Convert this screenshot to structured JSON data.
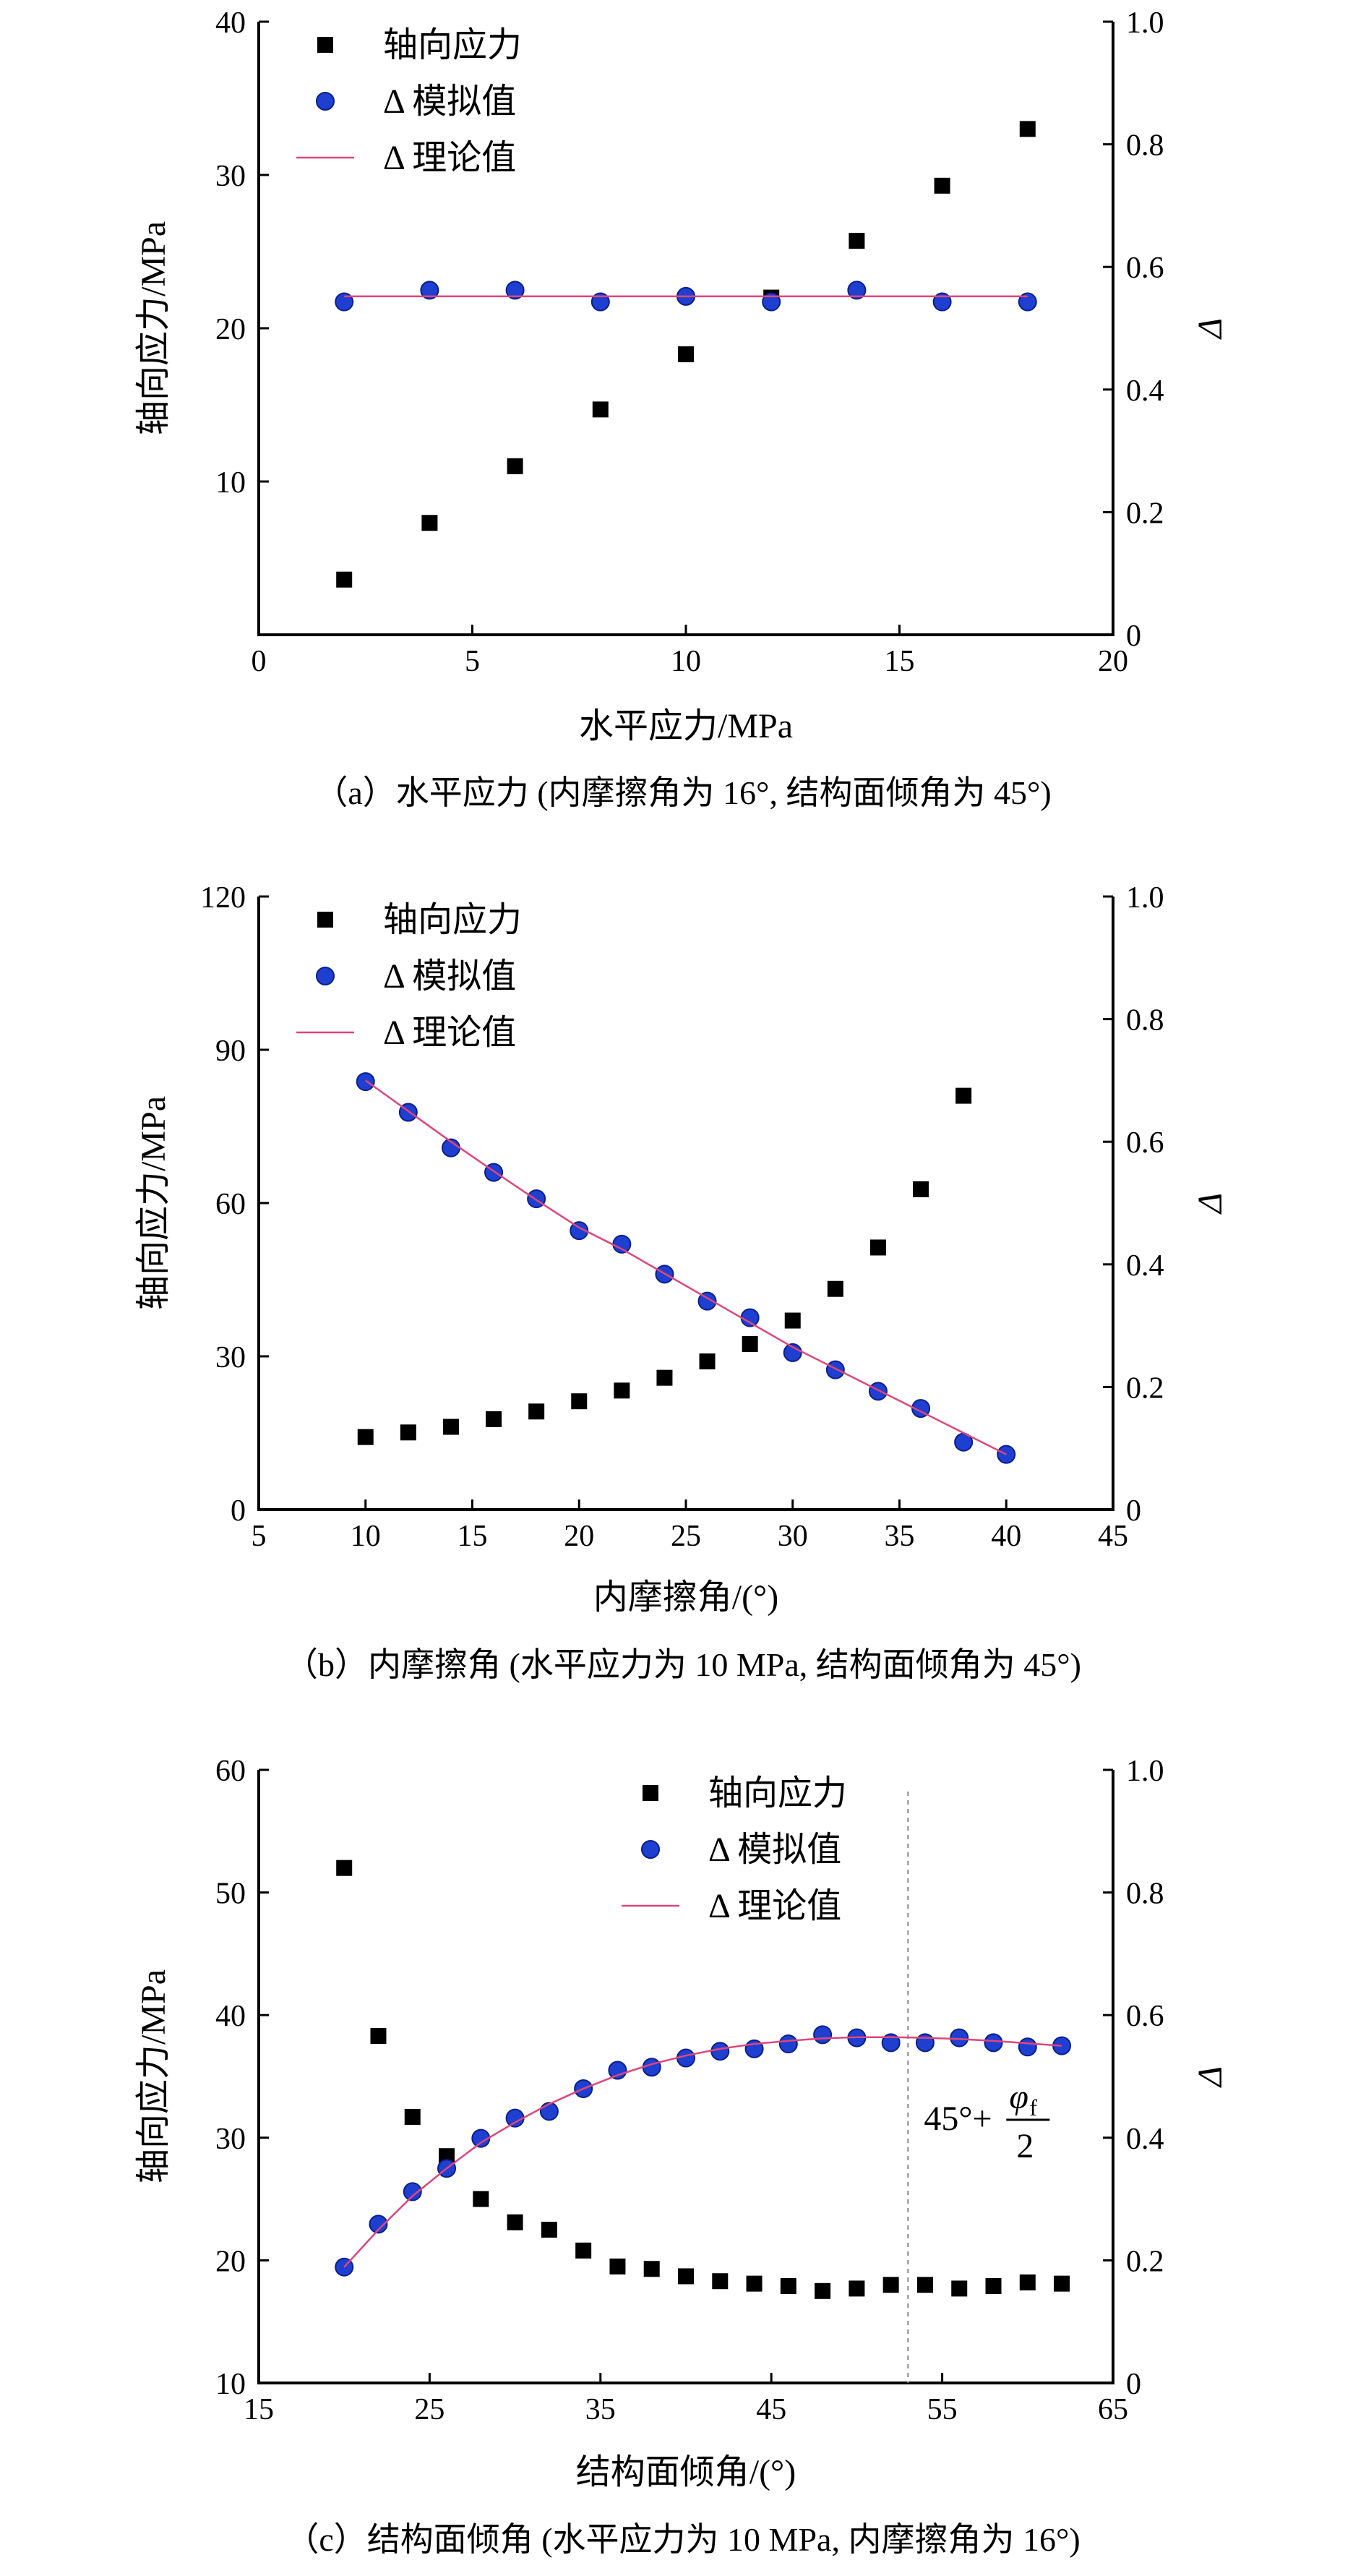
{
  "chart_data": [
    {
      "type": "scatter",
      "caption": "（a）水平应力 (内摩擦角为 16°, 结构面倾角为 45°)",
      "xlabel": "水平应力/MPa",
      "ylabel_left": "轴向应力/MPa",
      "ylabel_right": "Δ",
      "xlim": [
        0,
        20
      ],
      "ylim_left": [
        0,
        40
      ],
      "ylim_right": [
        0,
        1.0
      ],
      "xticks": [
        "0",
        "5",
        "10",
        "15",
        "20"
      ],
      "yticks_left": [
        "",
        "10",
        "20",
        "30",
        "40"
      ],
      "yticks_right": [
        "0",
        "0.2",
        "0.4",
        "0.6",
        "0.8",
        "1.0"
      ],
      "legend_position": "top-left",
      "legend": [
        "轴向应力",
        "Δ 模拟值",
        "Δ 理论值"
      ],
      "series": [
        {
          "marker": "square",
          "color": "#000000",
          "axis": "left",
          "x": [
            2,
            4,
            6,
            8,
            10,
            12,
            14,
            16,
            18
          ],
          "y": [
            3.6,
            7.3,
            11.0,
            14.7,
            18.3,
            22.0,
            25.7,
            29.3,
            33.0
          ]
        },
        {
          "marker": "circle",
          "color": "#1f3fd1",
          "axis": "right",
          "x": [
            2,
            4,
            6,
            8,
            10,
            12,
            14,
            16,
            18
          ],
          "y": [
            0.543,
            0.562,
            0.562,
            0.543,
            0.552,
            0.543,
            0.562,
            0.543,
            0.543
          ]
        },
        {
          "marker": "line",
          "color": "#e0457b",
          "axis": "right",
          "x": [
            2,
            18
          ],
          "y": [
            0.552,
            0.552
          ]
        }
      ]
    },
    {
      "type": "scatter",
      "caption": "（b）内摩擦角 (水平应力为 10 MPa, 结构面倾角为 45°)",
      "xlabel": "内摩擦角/(°)",
      "ylabel_left": "轴向应力/MPa",
      "ylabel_right": "Δ",
      "xlim": [
        5,
        45
      ],
      "ylim_left": [
        0,
        120
      ],
      "ylim_right": [
        0,
        1.0
      ],
      "xticks": [
        "5",
        "10",
        "15",
        "20",
        "25",
        "30",
        "35",
        "40",
        "45"
      ],
      "yticks_left": [
        "0",
        "30",
        "60",
        "90",
        "120"
      ],
      "yticks_right": [
        "0",
        "0.2",
        "0.4",
        "0.6",
        "0.8",
        "1.0"
      ],
      "legend_position": "top-left",
      "legend": [
        "轴向应力",
        "Δ 模拟值",
        "Δ 理论值"
      ],
      "series": [
        {
          "marker": "square",
          "color": "#000000",
          "axis": "left",
          "x": [
            10,
            12,
            14,
            16,
            18,
            20,
            22,
            24,
            26,
            28,
            30,
            32,
            34,
            36,
            38
          ],
          "y": [
            14.2,
            15.1,
            16.2,
            17.7,
            19.2,
            21.2,
            23.3,
            25.8,
            29.0,
            32.4,
            37.0,
            43.2,
            51.3,
            62.7,
            81.0
          ]
        },
        {
          "marker": "circle",
          "color": "#1f3fd1",
          "axis": "right",
          "x": [
            10,
            12,
            14,
            16,
            18,
            20,
            22,
            24,
            26,
            28,
            30,
            32,
            34,
            36,
            38,
            40
          ],
          "y": [
            0.698,
            0.648,
            0.59,
            0.55,
            0.507,
            0.455,
            0.433,
            0.384,
            0.34,
            0.313,
            0.256,
            0.228,
            0.193,
            0.165,
            0.11,
            0.09
          ]
        },
        {
          "marker": "line",
          "color": "#e0457b",
          "axis": "right",
          "x": [
            10,
            12,
            14,
            16,
            18,
            20,
            22,
            24,
            26,
            28,
            30,
            32,
            34,
            36,
            38,
            40
          ],
          "y": [
            0.7,
            0.65,
            0.6,
            0.552,
            0.505,
            0.46,
            0.425,
            0.385,
            0.345,
            0.305,
            0.265,
            0.23,
            0.195,
            0.16,
            0.125,
            0.09
          ]
        }
      ]
    },
    {
      "type": "scatter",
      "caption": "（c）结构面倾角 (水平应力为 10 MPa, 内摩擦角为 16°)",
      "xlabel": "结构面倾角/(°)",
      "ylabel_left": "轴向应力/MPa",
      "ylabel_right": "Δ",
      "xlim": [
        15,
        65
      ],
      "ylim_left": [
        10,
        60
      ],
      "ylim_right": [
        0,
        1.0
      ],
      "xticks": [
        "15",
        "25",
        "35",
        "45",
        "55",
        "65"
      ],
      "yticks_left": [
        "10",
        "20",
        "30",
        "40",
        "50",
        "60"
      ],
      "yticks_right": [
        "0",
        "0.2",
        "0.4",
        "0.6",
        "0.8",
        "1.0"
      ],
      "legend_position": "top-center",
      "legend": [
        "轴向应力",
        "Δ 模拟值",
        "Δ 理论值"
      ],
      "annotation": {
        "text": "45°+",
        "numerator": "φ",
        "numerator_sub": "f",
        "denominator": "2",
        "x": 53
      },
      "series": [
        {
          "marker": "square",
          "color": "#000000",
          "axis": "left",
          "x": [
            20,
            22,
            24,
            26,
            28,
            30,
            32,
            34,
            36,
            38,
            40,
            42,
            44,
            46,
            48,
            50,
            52,
            54,
            56,
            58,
            60,
            62
          ],
          "y": [
            52.0,
            38.3,
            31.7,
            28.5,
            25.0,
            23.1,
            22.5,
            20.8,
            19.5,
            19.3,
            18.7,
            18.3,
            18.1,
            17.9,
            17.5,
            17.7,
            18.0,
            18.0,
            17.7,
            17.9,
            18.2,
            18.1
          ]
        },
        {
          "marker": "circle",
          "color": "#1f3fd1",
          "axis": "right",
          "x": [
            20,
            22,
            24,
            26,
            28,
            30,
            32,
            34,
            36,
            38,
            40,
            42,
            44,
            46,
            48,
            50,
            52,
            54,
            56,
            58,
            60,
            62
          ],
          "y": [
            0.189,
            0.259,
            0.312,
            0.35,
            0.399,
            0.432,
            0.443,
            0.48,
            0.51,
            0.515,
            0.53,
            0.541,
            0.545,
            0.553,
            0.568,
            0.563,
            0.555,
            0.555,
            0.563,
            0.555,
            0.548,
            0.55
          ]
        },
        {
          "marker": "line",
          "color": "#e0457b",
          "axis": "right",
          "x": [
            20,
            22,
            24,
            26,
            28,
            30,
            32,
            34,
            36,
            38,
            40,
            42,
            44,
            46,
            48,
            50,
            52,
            54,
            56,
            58,
            60,
            62
          ],
          "y": [
            0.189,
            0.25,
            0.305,
            0.35,
            0.392,
            0.425,
            0.455,
            0.48,
            0.502,
            0.52,
            0.534,
            0.545,
            0.553,
            0.558,
            0.562,
            0.564,
            0.564,
            0.563,
            0.561,
            0.558,
            0.554,
            0.55
          ]
        }
      ]
    }
  ]
}
